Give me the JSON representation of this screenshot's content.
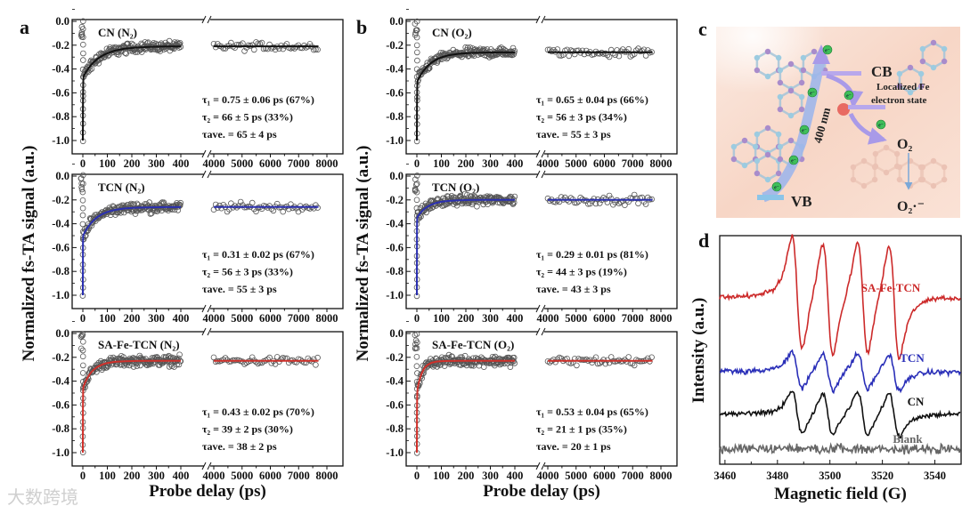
{
  "panels": {
    "a": "a",
    "b": "b",
    "c": "c",
    "d": "d"
  },
  "watermark": "大数跨境",
  "colors": {
    "black_fit": "#111111",
    "blue_fit": "#2a2fb0",
    "red_fit": "#d0302a",
    "point": "#555555",
    "epr_red": "#cc2a2a",
    "epr_blue": "#2a2fb8",
    "epr_black": "#111111",
    "epr_gray": "#666666"
  },
  "chart_data": [
    {
      "type": "scatter",
      "panel": "a",
      "ylabel": "Normalized fs-TA signal (a.u.)",
      "xlabel": "Probe delay (ps)",
      "x_ticks": [
        "0",
        "100",
        "200",
        "300",
        "400",
        "4000",
        "5000",
        "6000",
        "7000",
        "8000"
      ],
      "x_tick_values": [
        0,
        100,
        200,
        300,
        400,
        4000,
        5000,
        6000,
        7000,
        8000
      ],
      "y_ticks": [
        "0.0",
        "-0.2",
        "-0.4",
        "-0.6",
        "-0.8",
        "-1.0"
      ],
      "y_tick_values": [
        0,
        -0.2,
        -0.4,
        -0.6,
        -0.8,
        -1.0
      ],
      "xlim_segments": [
        [
          -45,
          505
        ],
        [
          3750,
          8570
        ]
      ],
      "ylim": [
        -1.11,
        0.015
      ],
      "axis_break": true,
      "subplots": [
        {
          "label": "CN (N₂)",
          "fit_color": "#111111",
          "tau1": 0.75,
          "tau1_frac": 0.67,
          "tau2": 66,
          "tau2_frac": 0.33,
          "plateau": -0.21,
          "annotations": [
            "τ₁ = 0.75 ± 0.06 ps (67%)",
            "τ₂ = 66 ± 5 ps (33%)",
            "τave. = 65 ± 4 ps"
          ]
        },
        {
          "label": "TCN (N₂)",
          "fit_color": "#2a2fb0",
          "tau1": 0.31,
          "tau1_frac": 0.67,
          "tau2": 56,
          "tau2_frac": 0.33,
          "plateau": -0.26,
          "annotations": [
            "τ₁ = 0.31 ± 0.02 ps (67%)",
            "τ₂ = 56 ± 3 ps (33%)",
            "τave. = 55 ± 3 ps"
          ]
        },
        {
          "label": "SA-Fe-TCN (N₂)",
          "fit_color": "#d0302a",
          "tau1": 0.43,
          "tau1_frac": 0.7,
          "tau2": 39,
          "tau2_frac": 0.3,
          "plateau": -0.23,
          "annotations": [
            "τ₁ = 0.43 ± 0.02 ps (70%)",
            "τ₂ = 39 ± 2 ps (30%)",
            "τave. = 38 ± 2 ps"
          ]
        }
      ]
    },
    {
      "type": "scatter",
      "panel": "b",
      "ylabel": "Normalized fs-TA signal (a.u.)",
      "xlabel": "Probe delay (ps)",
      "x_ticks": [
        "0",
        "100",
        "200",
        "300",
        "400",
        "4000",
        "5000",
        "6000",
        "7000",
        "8000"
      ],
      "x_tick_values": [
        0,
        100,
        200,
        300,
        400,
        4000,
        5000,
        6000,
        7000,
        8000
      ],
      "y_ticks": [
        "0.0",
        "-0.2",
        "-0.4",
        "-0.6",
        "-0.8",
        "-1.0"
      ],
      "y_tick_values": [
        0,
        -0.2,
        -0.4,
        -0.6,
        -0.8,
        -1.0
      ],
      "xlim_segments": [
        [
          -45,
          505
        ],
        [
          3750,
          8570
        ]
      ],
      "ylim": [
        -1.11,
        0.015
      ],
      "axis_break": true,
      "subplots": [
        {
          "label": "CN (O₂)",
          "fit_color": "#111111",
          "tau1": 0.65,
          "tau1_frac": 0.66,
          "tau2": 56,
          "tau2_frac": 0.34,
          "plateau": -0.26,
          "annotations": [
            "τ₁ = 0.65 ± 0.04 ps (66%)",
            "τ₂ = 56 ± 3 ps (34%)",
            "τave. = 55 ± 3 ps"
          ]
        },
        {
          "label": "TCN (O₂)",
          "fit_color": "#2a2fb0",
          "tau1": 0.29,
          "tau1_frac": 0.81,
          "tau2": 44,
          "tau2_frac": 0.19,
          "plateau": -0.2,
          "annotations": [
            "τ₁ = 0.29 ± 0.01 ps (81%)",
            "τ₂ = 44 ± 3 ps (19%)",
            "τave. = 43 ± 3 ps"
          ]
        },
        {
          "label": "SA-Fe-TCN (O₂)",
          "fit_color": "#d0302a",
          "tau1": 0.53,
          "tau1_frac": 0.65,
          "tau2": 21,
          "tau2_frac": 0.35,
          "plateau": -0.23,
          "annotations": [
            "τ₁ = 0.53 ± 0.04 ps (65%)",
            "τ₂ = 21 ± 1 ps (35%)",
            "τave. = 20 ± 1 ps"
          ]
        }
      ]
    },
    {
      "type": "line",
      "panel": "d",
      "xlabel": "Magnetic field (G)",
      "ylabel": "Intensity (a.u.)",
      "x_ticks": [
        "3460",
        "3480",
        "3500",
        "3520",
        "3540"
      ],
      "x_tick_values": [
        3460,
        3480,
        3500,
        3520,
        3540
      ],
      "xlim": [
        3458,
        3550
      ],
      "ylim": [
        0,
        10
      ],
      "line_centers_G": [
        3487.5,
        3499.2,
        3512.5,
        3524.5
      ],
      "line_width_G": 3.4,
      "series": [
        {
          "name": "SA-Fe-TCN",
          "color": "#cc2a2a",
          "baseline": 7.3,
          "amplitude": 3.9
        },
        {
          "name": "TCN",
          "color": "#2a2fb8",
          "baseline": 4.05,
          "amplitude": 1.25
        },
        {
          "name": "CN",
          "color": "#111111",
          "baseline": 2.2,
          "amplitude": 1.5
        },
        {
          "name": "Blank",
          "color": "#666666",
          "baseline": 0.66,
          "amplitude": 0
        }
      ]
    }
  ],
  "diagram_c": {
    "cb": "CB",
    "vb": "VB",
    "fe_state_line1": "Localized Fe",
    "fe_state_line2": "electron state",
    "excitation": "400 nm",
    "o2": "O₂",
    "superoxide": "O₂·⁻",
    "electron": "e⁻"
  }
}
